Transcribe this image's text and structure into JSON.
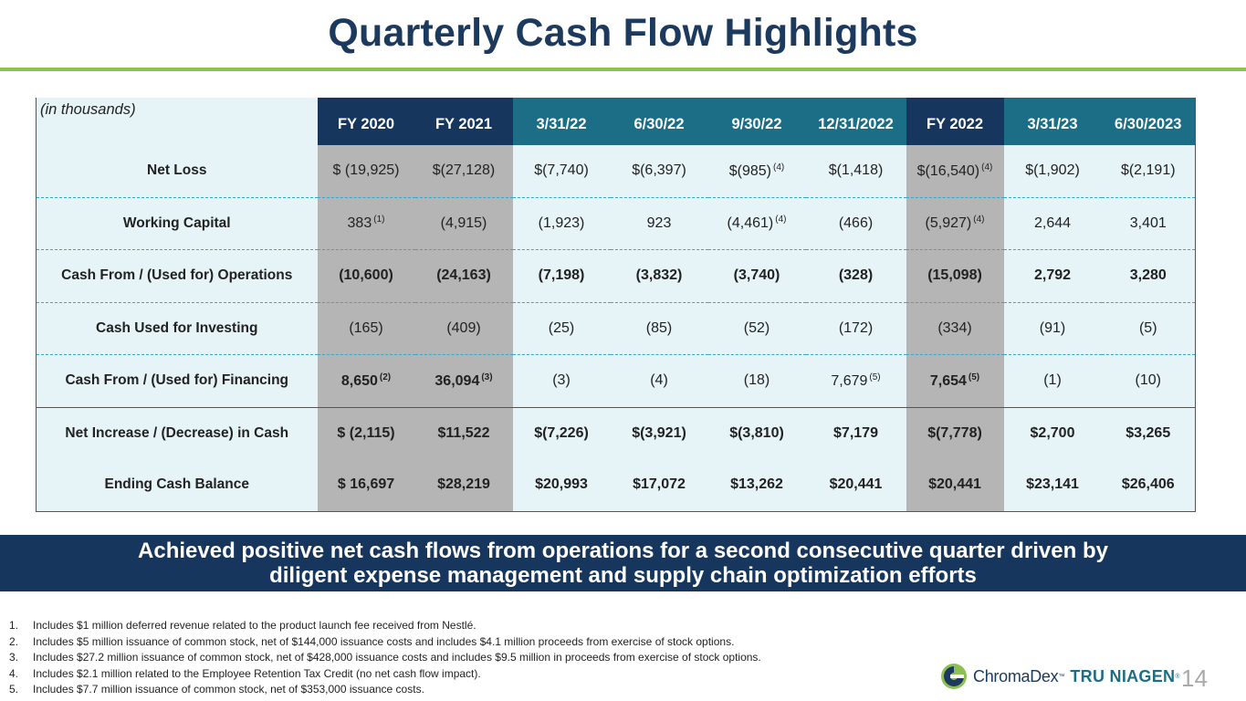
{
  "title": "Quarterly Cash Flow Highlights",
  "table": {
    "corner_label": "(in thousands)",
    "headers": [
      {
        "label": "FY 2020",
        "style": "navy"
      },
      {
        "label": "FY 2021",
        "style": "navy"
      },
      {
        "label": "3/31/22",
        "style": "teal"
      },
      {
        "label": "6/30/22",
        "style": "teal"
      },
      {
        "label": "9/30/22",
        "style": "teal"
      },
      {
        "label": "12/31/2022",
        "style": "teal"
      },
      {
        "label": "FY 2022",
        "style": "navy"
      },
      {
        "label": "3/31/23",
        "style": "teal"
      },
      {
        "label": "6/30/2023",
        "style": "teal"
      }
    ],
    "rows": [
      {
        "label": "Net Loss",
        "bold": false,
        "border": "dash",
        "cells": [
          {
            "v": "$ (19,925)"
          },
          {
            "v": "$(27,128)"
          },
          {
            "v": "$(7,740)"
          },
          {
            "v": "$(6,397)"
          },
          {
            "v": "$(985)",
            "sup": "(4)"
          },
          {
            "v": "$(1,418)"
          },
          {
            "v": "$(16,540)",
            "sup": "(4)"
          },
          {
            "v": "$(1,902)"
          },
          {
            "v": "$(2,191)"
          }
        ]
      },
      {
        "label": "Working Capital",
        "bold": false,
        "border": "dash",
        "cells": [
          {
            "v": "383",
            "sup": "(1)"
          },
          {
            "v": "(4,915)"
          },
          {
            "v": "(1,923)"
          },
          {
            "v": "923"
          },
          {
            "v": "(4,461)",
            "sup": "(4)"
          },
          {
            "v": "(466)"
          },
          {
            "v": "(5,927)",
            "sup": "(4)"
          },
          {
            "v": "2,644"
          },
          {
            "v": "3,401"
          }
        ]
      },
      {
        "label": "Cash From / (Used for) Operations",
        "bold": true,
        "border": "dash",
        "cells": [
          {
            "v": "(10,600)"
          },
          {
            "v": "(24,163)"
          },
          {
            "v": "(7,198)"
          },
          {
            "v": "(3,832)"
          },
          {
            "v": "(3,740)"
          },
          {
            "v": "(328)"
          },
          {
            "v": "(15,098)"
          },
          {
            "v": "2,792"
          },
          {
            "v": "3,280"
          }
        ]
      },
      {
        "label": "Cash Used for Investing",
        "bold": false,
        "border": "dash",
        "cells": [
          {
            "v": "(165)"
          },
          {
            "v": "(409)"
          },
          {
            "v": "(25)"
          },
          {
            "v": "(85)"
          },
          {
            "v": "(52)"
          },
          {
            "v": "(172)"
          },
          {
            "v": "(334)"
          },
          {
            "v": "(91)"
          },
          {
            "v": "(5)"
          }
        ]
      },
      {
        "label": "Cash From / (Used for) Financing",
        "bold": false,
        "border": "solid",
        "cells": [
          {
            "v": "8,650",
            "sup": "(2)",
            "bold": true
          },
          {
            "v": "36,094",
            "sup": "(3)",
            "bold": true
          },
          {
            "v": "(3)"
          },
          {
            "v": "(4)"
          },
          {
            "v": "(18)"
          },
          {
            "v": "7,679",
            "sup": "(5)"
          },
          {
            "v": "7,654",
            "sup": "(5)",
            "bold": true
          },
          {
            "v": "(1)"
          },
          {
            "v": "(10)"
          }
        ]
      },
      {
        "label": "Net Increase / (Decrease) in Cash",
        "bold": true,
        "border": "none",
        "cells": [
          {
            "v": "$ (2,115)"
          },
          {
            "v": "$11,522"
          },
          {
            "v": "$(7,226)"
          },
          {
            "v": "$(3,921)"
          },
          {
            "v": "$(3,810)"
          },
          {
            "v": "$7,179"
          },
          {
            "v": "$(7,778)"
          },
          {
            "v": "$2,700"
          },
          {
            "v": "$3,265"
          }
        ]
      },
      {
        "label": "Ending Cash Balance",
        "bold": true,
        "border": "last",
        "cells": [
          {
            "v": "$ 16,697"
          },
          {
            "v": "$28,219"
          },
          {
            "v": "$20,993"
          },
          {
            "v": "$17,072"
          },
          {
            "v": "$13,262"
          },
          {
            "v": "$20,441"
          },
          {
            "v": "$20,441"
          },
          {
            "v": "$23,141"
          },
          {
            "v": "$26,406"
          }
        ]
      }
    ]
  },
  "banner": {
    "line1": "Achieved positive net cash flows from operations for a second consecutive quarter driven by",
    "line2": "diligent expense management and supply chain optimization efforts"
  },
  "footnotes": [
    {
      "num": "1.",
      "text": "Includes $1 million deferred revenue related to the product launch fee received from Nestlé."
    },
    {
      "num": "2.",
      "text": "Includes $5 million issuance of common stock, net of $144,000 issuance costs and includes $4.1 million proceeds from exercise of stock options."
    },
    {
      "num": "3.",
      "text": "Includes $27.2 million issuance of common stock, net of $428,000 issuance costs and includes $9.5 million in proceeds from exercise of stock options."
    },
    {
      "num": "4.",
      "text": "Includes $2.1 million related to the Employee Retention Tax Credit (no net cash flow impact)."
    },
    {
      "num": "5.",
      "text": "Includes $7.7 million issuance of common stock, net of $353,000 issuance costs."
    }
  ],
  "logo": {
    "chromadex": "ChromaDex",
    "tm": "™",
    "tru_niagen": "TRU NIAGEN",
    "reg": "®"
  },
  "page_number": "14",
  "colors": {
    "navy": "#17365d",
    "teal": "#1c6e86",
    "accent_green": "#8cc152",
    "gray_column": "#b5b5b5",
    "light_column": "#e6f4f8"
  }
}
